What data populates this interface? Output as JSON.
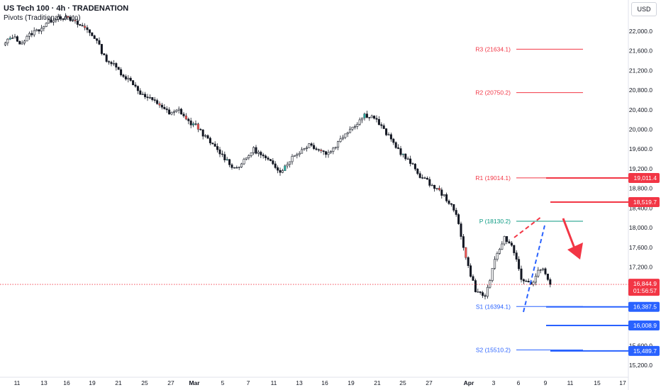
{
  "header": {
    "title": "US Tech 100 · 4h · TRADENATION",
    "indicator": "Pivots (Traditional, Auto)",
    "currency": "USD"
  },
  "colors": {
    "up": "#26a69a",
    "down": "#ef5350",
    "candle": "#131722",
    "resistance": "#f23645",
    "support": "#2962ff",
    "pivot": "#089981",
    "support_label": "#2962ff"
  },
  "chart_data": {
    "type": "candlestick",
    "y_axis": {
      "ylim": [
        15000,
        22300
      ],
      "ticks": [
        "22,000.0",
        "21,600.0",
        "21,200.0",
        "20,800.0",
        "20,400.0",
        "20,000.0",
        "19,600.0",
        "19,200.0",
        "18,800.0",
        "18,400.0",
        "18,000.0",
        "17,600.0",
        "17,200.0",
        "16,800.0",
        "16,400.0",
        "16,000.0",
        "15,600.0",
        "15,200.0"
      ]
    },
    "x_axis": {
      "ticks": [
        "11",
        "13",
        "16",
        "19",
        "21",
        "25",
        "27",
        "Mar",
        "5",
        "7",
        "11",
        "13",
        "16",
        "19",
        "21",
        "25",
        "27",
        "Apr",
        "3",
        "6",
        "9",
        "11",
        "15",
        "17"
      ]
    },
    "pivots": [
      {
        "label": "R3 (21634.1)",
        "value": 21634.1,
        "kind": "resistance"
      },
      {
        "label": "R2 (20750.2)",
        "value": 20750.2,
        "kind": "resistance"
      },
      {
        "label": "R1 (19014.1)",
        "value": 19014.1,
        "kind": "resistance"
      },
      {
        "label": "P (18130.2)",
        "value": 18130.2,
        "kind": "pivot"
      },
      {
        "label": "S1 (16394.1)",
        "value": 16394.1,
        "kind": "support"
      },
      {
        "label": "S2 (15510.2)",
        "value": 15510.2,
        "kind": "support"
      }
    ],
    "price_levels": [
      {
        "label": "19,011.4",
        "value": 19011.4,
        "kind": "resistance"
      },
      {
        "label": "18,519.7",
        "value": 18519.7,
        "kind": "resistance"
      },
      {
        "label": "16,387.5",
        "value": 16387.5,
        "kind": "support"
      },
      {
        "label": "16,008.9",
        "value": 16008.9,
        "kind": "support"
      },
      {
        "label": "15,489.7",
        "value": 15489.7,
        "kind": "support"
      }
    ],
    "current_price": {
      "label": "16,844.9",
      "value": 16844.9,
      "countdown": "01:56:57"
    },
    "series_path": [
      21700,
      21900,
      21750,
      21950,
      22050,
      22200,
      22300,
      22250,
      22150,
      22050,
      21850,
      21450,
      21300,
      21100,
      20950,
      20700,
      20600,
      20500,
      20300,
      20400,
      20150,
      20050,
      19800,
      19600,
      19400,
      19200,
      19350,
      19600,
      19450,
      19300,
      19150,
      19400,
      19550,
      19700,
      19600,
      19500,
      19700,
      19950,
      20100,
      20300,
      20250,
      20000,
      19750,
      19500,
      19300,
      19050,
      18900,
      18750,
      18550,
      18200,
      17300,
      16700,
      16600,
      17300,
      17800,
      17600,
      16900,
      16850,
      17200,
      16844.9
    ]
  }
}
